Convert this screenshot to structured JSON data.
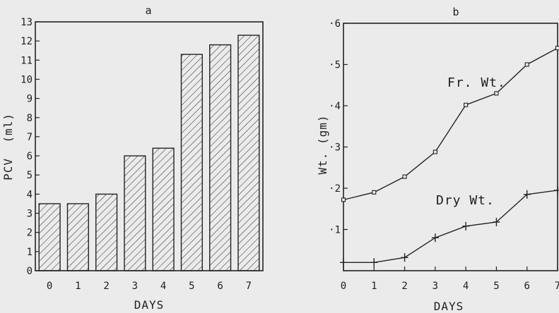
{
  "chart_data": [
    {
      "panel": "a",
      "type": "bar",
      "title": "a",
      "xlabel": "DAYS",
      "ylabel": "PCV  (ml)",
      "categories": [
        "0",
        "1",
        "2",
        "3",
        "4",
        "5",
        "6",
        "7"
      ],
      "values": [
        3.5,
        3.5,
        4.0,
        6.0,
        6.4,
        11.3,
        11.8,
        12.3
      ],
      "ylim": [
        0,
        13
      ],
      "yticks": [
        "0",
        "1",
        "2",
        "3",
        "4",
        "5",
        "6",
        "7",
        "8",
        "9",
        "10",
        "11",
        "12",
        "13"
      ],
      "bar_fill": "diagonal-hatch",
      "grid": false
    },
    {
      "panel": "b",
      "type": "line",
      "title": "b",
      "xlabel": "DAYS",
      "ylabel": "Wt. (gm)",
      "x": [
        0,
        1,
        2,
        3,
        4,
        5,
        6,
        7
      ],
      "xticks": [
        "0",
        "1",
        "2",
        "3",
        "4",
        "5",
        "6",
        "7"
      ],
      "xlim": [
        0,
        7
      ],
      "ylim": [
        0,
        0.6
      ],
      "yticks": [
        0,
        0.1,
        0.2,
        0.3,
        0.4,
        0.5,
        0.6
      ],
      "ytick_labels": [
        "",
        "·1",
        "·2",
        "·3",
        "·4",
        "·5",
        "·6"
      ],
      "series": [
        {
          "name": "Fr. Wt.",
          "values": [
            0.172,
            0.19,
            0.228,
            0.288,
            0.402,
            0.43,
            0.5,
            0.54
          ],
          "marker": "square"
        },
        {
          "name": "Dry Wt.",
          "values": [
            0.02,
            0.02,
            0.032,
            0.08,
            0.108,
            0.118,
            0.185,
            0.195
          ],
          "marker": "plus"
        }
      ],
      "grid": false
    }
  ]
}
